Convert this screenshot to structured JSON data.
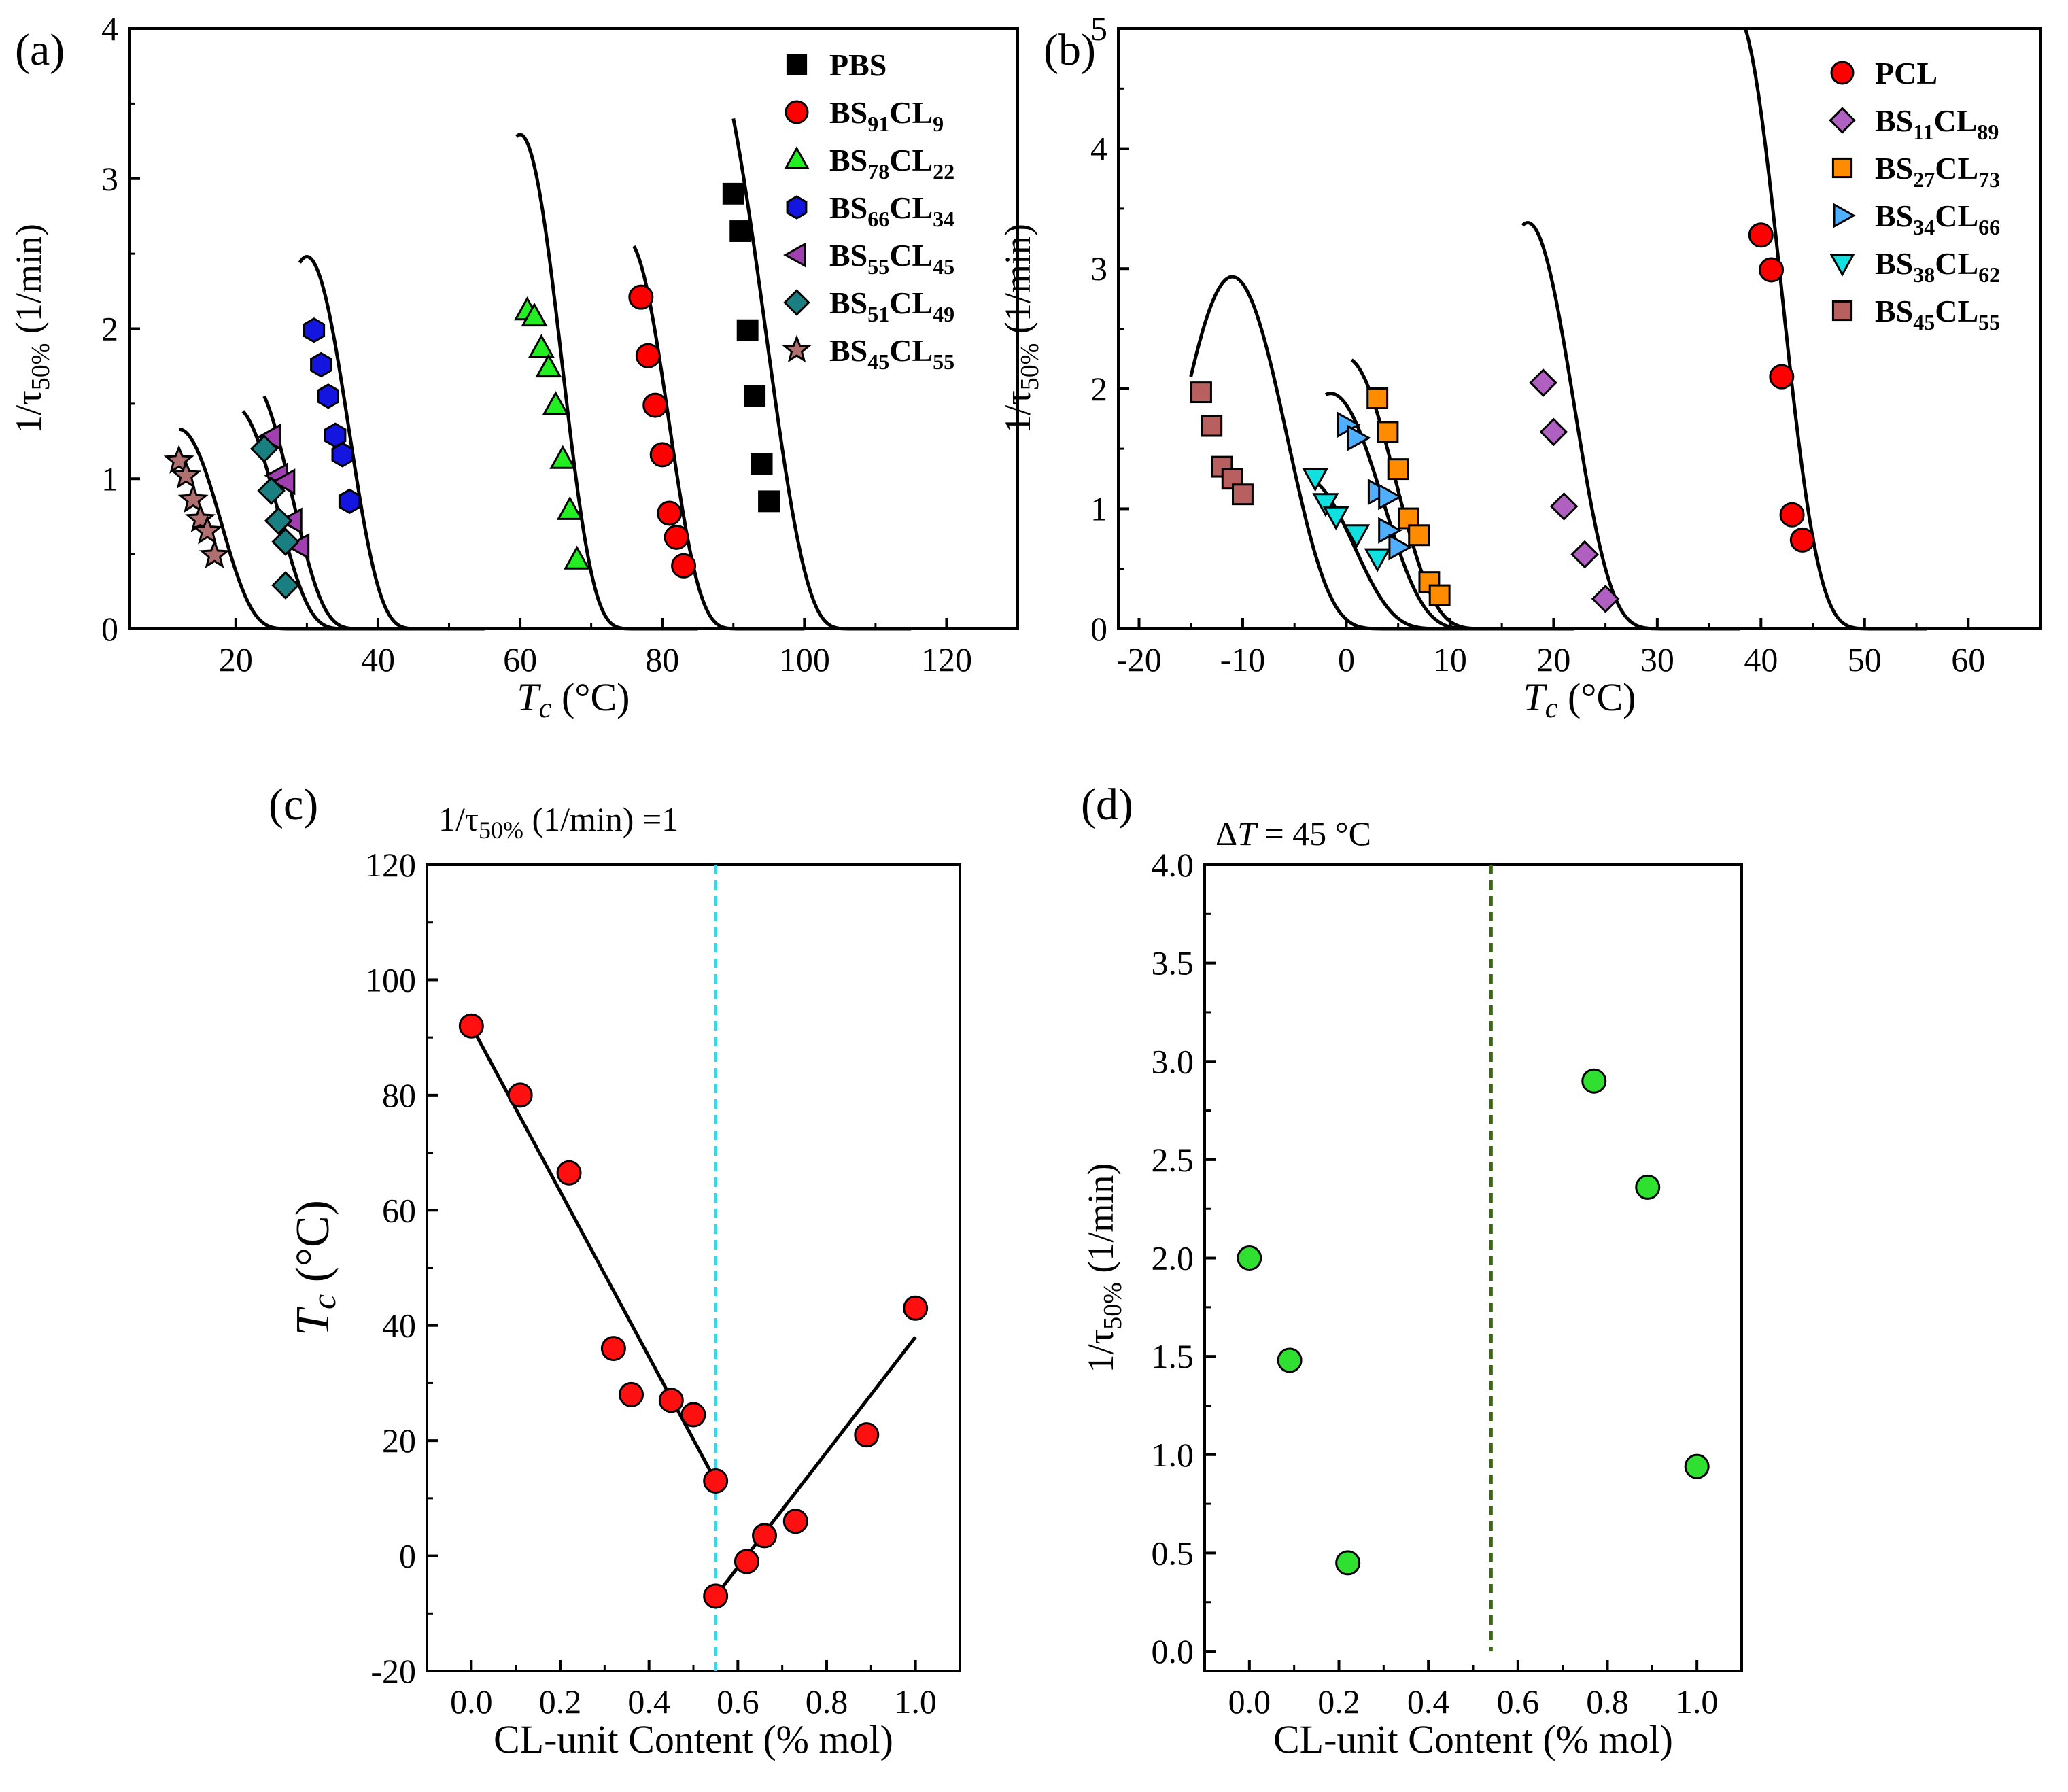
{
  "chart_data": [
    {
      "panel": "(a)",
      "type": "scatter",
      "xlabel": "T_c (°C)",
      "ylabel": "1/τ_50% (1/min)",
      "xlim": [
        5,
        130
      ],
      "ylim": [
        0,
        4
      ],
      "xticks": [
        20,
        40,
        60,
        80,
        100,
        120
      ],
      "yticks": [
        0,
        1,
        2,
        3,
        4
      ],
      "legend_position": "top-right",
      "series": [
        {
          "name": "PBS",
          "base": "PBS",
          "sub1": "",
          "mid": "",
          "sub2": "",
          "marker": "square",
          "color": "#000000",
          "x": [
            90,
            91,
            92,
            93,
            94,
            95
          ],
          "y": [
            2.9,
            2.65,
            1.99,
            1.55,
            1.1,
            0.85
          ],
          "curve": {
            "Tm": 110,
            "Tinf": 60,
            "x_start": 90,
            "x_end": 115,
            "y_at_start": 3.4
          }
        },
        {
          "name": "BS91CL9",
          "base": "BS",
          "sub1": "91",
          "mid": "CL",
          "sub2": "9",
          "marker": "circle",
          "color": "#ff0000",
          "x": [
            77,
            78,
            79,
            80,
            81,
            82,
            83
          ],
          "y": [
            2.21,
            1.82,
            1.49,
            1.16,
            0.77,
            0.61,
            0.42
          ],
          "curve": {
            "Tm": 95,
            "Tinf": 55,
            "x_start": 76,
            "x_end": 100,
            "y_at_start": 2.55
          }
        },
        {
          "name": "BS78CL22",
          "base": "BS",
          "sub1": "78",
          "mid": "CL",
          "sub2": "22",
          "marker": "triangle-up",
          "color": "#22ee22",
          "x": [
            61,
            62,
            63,
            64,
            65,
            66,
            67,
            68
          ],
          "y": [
            2.12,
            2.08,
            1.87,
            1.74,
            1.49,
            1.13,
            0.79,
            0.46
          ],
          "curve": {
            "Tm": 80,
            "Tinf": 40,
            "x_start": 59.5,
            "x_end": 85,
            "y_at_start": 3.28
          }
        },
        {
          "name": "BS66CL34",
          "base": "BS",
          "sub1": "66",
          "mid": "CL",
          "sub2": "34",
          "marker": "hexagon",
          "color": "#1515e0",
          "x": [
            31,
            32,
            33,
            34,
            35,
            36
          ],
          "y": [
            1.99,
            1.76,
            1.55,
            1.29,
            1.16,
            0.85
          ],
          "curve": {
            "Tm": 50,
            "Tinf": 10,
            "x_start": 29,
            "x_end": 55,
            "y_at_start": 2.44
          }
        },
        {
          "name": "BS55CL45",
          "base": "BS",
          "sub1": "55",
          "mid": "CL",
          "sub2": "45",
          "marker": "triangle-left",
          "color": "#a040b0",
          "x": [
            25,
            26,
            27,
            28,
            29
          ],
          "y": [
            1.28,
            1.02,
            0.98,
            0.72,
            0.55
          ],
          "curve": {
            "Tm": 42,
            "Tinf": 2,
            "x_start": 24,
            "x_end": 47,
            "y_at_start": 1.55
          }
        },
        {
          "name": "BS51CL49",
          "base": "BS",
          "sub1": "51",
          "mid": "CL",
          "sub2": "49",
          "marker": "diamond",
          "color": "#1a7f80",
          "x": [
            24,
            25,
            26,
            27
          ],
          "y": [
            1.2,
            0.92,
            0.72,
            0.58
          ],
          "extra": {
            "x": [
              27
            ],
            "y": [
              0.29
            ]
          },
          "curve": {
            "Tm": 40,
            "Tinf": 0,
            "x_start": 21,
            "x_end": 45,
            "y_at_start": 1.45
          }
        },
        {
          "name": "BS45CL55",
          "base": "BS",
          "sub1": "45",
          "mid": "CL",
          "sub2": "55",
          "marker": "star",
          "color": "#b07070",
          "x": [
            12,
            13,
            14,
            15,
            16,
            17
          ],
          "y": [
            1.12,
            1.02,
            0.86,
            0.73,
            0.65,
            0.49
          ],
          "curve": {
            "Tm": 32,
            "Tinf": -8,
            "x_start": 12,
            "x_end": 36,
            "y_at_start": 1.33
          }
        }
      ]
    },
    {
      "panel": "(b)",
      "type": "scatter",
      "xlabel": "T_c (°C)",
      "ylabel": "1/τ_50% (1/min)",
      "xlim": [
        -22,
        67
      ],
      "ylim": [
        0,
        5
      ],
      "xticks": [
        -20,
        -10,
        0,
        10,
        20,
        30,
        40,
        50,
        60
      ],
      "yticks": [
        0,
        1,
        2,
        3,
        4,
        5
      ],
      "legend_position": "top-right",
      "series": [
        {
          "name": "PCL",
          "base": "PCL",
          "sub1": "",
          "mid": "",
          "sub2": "",
          "marker": "circle",
          "color": "#ff0000",
          "x": [
            40,
            41,
            42,
            43,
            44
          ],
          "y": [
            3.28,
            2.99,
            2.1,
            0.95,
            0.74
          ],
          "curve": {
            "Tm": 55,
            "Tinf": 20,
            "x_start": 38.5,
            "x_end": 56,
            "y_at_start": 5.0
          }
        },
        {
          "name": "BS11CL89",
          "base": "BS",
          "sub1": "11",
          "mid": "CL",
          "sub2": "89",
          "marker": "diamond",
          "color": "#b060c0",
          "x": [
            19,
            20,
            21,
            23,
            25
          ],
          "y": [
            2.05,
            1.64,
            1.02,
            0.62,
            0.25
          ],
          "curve": {
            "Tm": 35,
            "Tinf": 0,
            "x_start": 17,
            "x_end": 38,
            "y_at_start": 3.36
          }
        },
        {
          "name": "BS27CL73",
          "base": "BS",
          "sub1": "27",
          "mid": "CL",
          "sub2": "73",
          "marker": "square",
          "color": "#ff8c00",
          "x": [
            3,
            4,
            5,
            6,
            7,
            8,
            9
          ],
          "y": [
            1.92,
            1.64,
            1.33,
            0.92,
            0.78,
            0.39,
            0.28
          ],
          "curve": {
            "Tm": 18,
            "Tinf": -18,
            "x_start": 0.5,
            "x_end": 22,
            "y_at_start": 2.24
          }
        },
        {
          "name": "BS34CL66",
          "base": "BS",
          "sub1": "34",
          "mid": "CL",
          "sub2": "66",
          "marker": "triangle-right",
          "color": "#50b0ff",
          "x": [
            0,
            1,
            3,
            4,
            5
          ],
          "y": [
            1.7,
            1.59,
            1.14,
            0.82,
            0.68
          ],
          "extra": {
            "x": [
              4
            ],
            "y": [
              1.1
            ]
          },
          "curve": {
            "Tm": 17,
            "Tinf": -20,
            "x_start": -2,
            "x_end": 20,
            "y_at_start": 1.95
          }
        },
        {
          "name": "BS38CL62",
          "base": "BS",
          "sub1": "38",
          "mid": "CL",
          "sub2": "62",
          "marker": "triangle-down",
          "color": "#10e0e0",
          "x": [
            -3,
            -2,
            -1,
            1,
            3
          ],
          "y": [
            1.26,
            1.05,
            0.94,
            0.79,
            0.59
          ],
          "curve": {
            "Tm": 14,
            "Tinf": -22,
            "x_start": -3.5,
            "x_end": 18,
            "y_at_start": 1.25
          }
        },
        {
          "name": "BS45CL55",
          "base": "BS",
          "sub1": "45",
          "mid": "CL",
          "sub2": "55",
          "marker": "square",
          "color": "#b86060",
          "x": [
            -14,
            -13,
            -12,
            -11,
            -10
          ],
          "y": [
            1.97,
            1.69,
            1.35,
            1.25,
            1.12
          ],
          "curve": {
            "Tm": 8,
            "Tinf": -30,
            "x_start": -15,
            "x_end": 12,
            "y_at_start": 2.1
          }
        }
      ]
    },
    {
      "panel": "(c)",
      "type": "scatter",
      "title": "1/τ_50% (1/min) =1",
      "xlabel": "CL-unit Content (% mol)",
      "ylabel": "T_c (°C)",
      "xlim": [
        -0.1,
        1.1
      ],
      "ylim": [
        -20,
        120
      ],
      "xticks": [
        0.0,
        0.2,
        0.4,
        0.6,
        0.8,
        1.0
      ],
      "yticks": [
        -20,
        0,
        20,
        40,
        60,
        80,
        100,
        120
      ],
      "tick_labels_x": [
        "0.0",
        "0.2",
        "0.4",
        "0.6",
        "0.8",
        "1.0"
      ],
      "tick_labels_y": [
        "-20",
        "0",
        "20",
        "40",
        "60",
        "80",
        "100",
        "120"
      ],
      "points": {
        "x": [
          0.0,
          0.11,
          0.22,
          0.32,
          0.36,
          0.45,
          0.5,
          0.55,
          0.55,
          0.62,
          0.66,
          0.73,
          0.89,
          1.0
        ],
        "y": [
          92,
          80,
          66.5,
          36,
          28,
          27,
          24.5,
          13,
          -7,
          -1,
          3.5,
          6,
          21,
          43
        ]
      },
      "fit_lines": [
        {
          "x": [
            0.0,
            0.55
          ],
          "y": [
            92,
            13
          ]
        },
        {
          "x": [
            0.55,
            1.0
          ],
          "y": [
            -7,
            38
          ]
        }
      ],
      "vline": {
        "x": 0.55,
        "color": "#22e0f0"
      }
    },
    {
      "panel": "(d)",
      "type": "scatter",
      "title": "ΔT = 45 °C",
      "xlabel": "CL-unit Content (% mol)",
      "ylabel": "1/τ_50% (1/min)",
      "xlim": [
        -0.1,
        1.1
      ],
      "ylim": [
        -0.1,
        4.0
      ],
      "xticks": [
        0.0,
        0.2,
        0.4,
        0.6,
        0.8,
        1.0
      ],
      "yticks": [
        0.0,
        0.5,
        1.0,
        1.5,
        2.0,
        2.5,
        3.0,
        3.5,
        4.0
      ],
      "tick_labels_x": [
        "0.0",
        "0.2",
        "0.4",
        "0.6",
        "0.8",
        "1.0"
      ],
      "tick_labels_y": [
        "0.0",
        "0.5",
        "1.0",
        "1.5",
        "2.0",
        "2.5",
        "3.0",
        "3.5",
        "4.0"
      ],
      "points": {
        "x": [
          0.0,
          0.09,
          0.22,
          0.77,
          0.89,
          1.0
        ],
        "y": [
          2.0,
          1.48,
          0.45,
          2.9,
          2.36,
          0.94
        ]
      },
      "vline": {
        "x": 0.54,
        "color": "#3a6a10"
      }
    }
  ]
}
